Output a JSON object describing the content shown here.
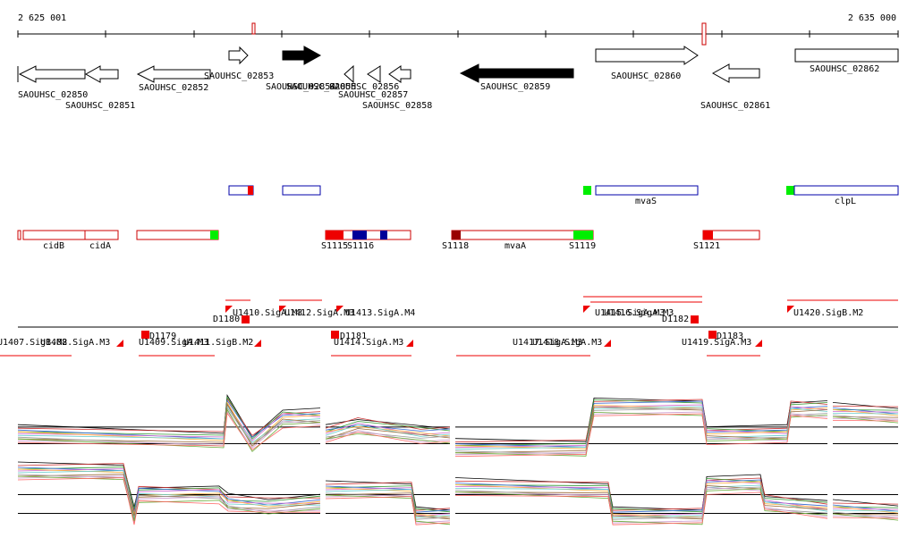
{
  "ruler": {
    "start": "2 625 001",
    "end": "2 635 000"
  },
  "genes": [
    "SAOUHSC_02850",
    "SAOUHSC_02851",
    "SAOUHSC_02852",
    "SAOUHSC_02853",
    "SAOUHSC_02854",
    "SAOUHSC_02855",
    "SAOUHSC_02856",
    "SAOUHSC_02857",
    "SAOUHSC_02858",
    "SAOUHSC_02859",
    "SAOUHSC_02860",
    "SAOUHSC_02861",
    "SAOUHSC_02862"
  ],
  "features": [
    "mvaS",
    "clpL",
    "cidB",
    "cidA",
    "S1115",
    "S1116",
    "S1118",
    "mvaA",
    "S1119",
    "S1121"
  ],
  "promoters": [
    "U1407.SigB.M2",
    "U1408.SigA.M3",
    "U1409.SigA.M3",
    "U1411.SigB.M2",
    "D1179",
    "D1180",
    "U1410.SigA.M3",
    "U1412.SigA.M3",
    "U1413.SigA.M4",
    "D1181",
    "U1414.SigA.M3",
    "U1415.SigA.M3",
    "U1416.SigA.M3",
    "U1417.SigA.M3",
    "U1418.SigA.M3",
    "D1182",
    "D1183",
    "U1419.SigA.M3",
    "U1420.SigB.M2"
  ]
}
